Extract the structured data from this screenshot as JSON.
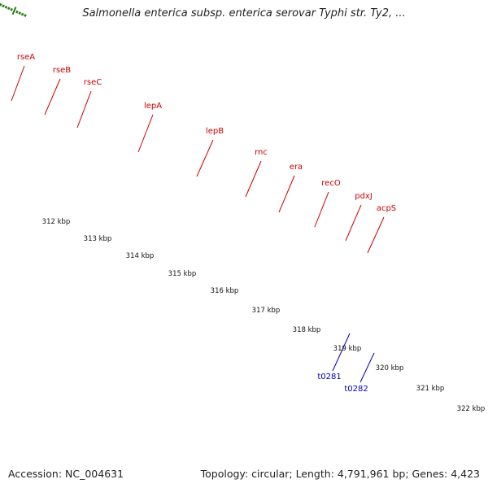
{
  "header": {
    "title": "Salmonella enterica subsp. enterica serovar Typhi str. Ty2, ..."
  },
  "footer": {
    "accession": "Accession: NC_004631",
    "summary": "Topology: circular; Length: 4,791,961 bp; Genes: 4,423"
  },
  "colors": {
    "label_red": "#cc0000",
    "label_blue": "#0000bb",
    "ticks": "#2e7d1a",
    "backbone": "#8a8a8a",
    "forward_arrow": "#ff0000"
  },
  "gene_labels": [
    {
      "text": "rseA",
      "color": "#cc0000"
    },
    {
      "text": "rseB",
      "color": "#cc0000"
    },
    {
      "text": "rseC",
      "color": "#cc0000"
    },
    {
      "text": "lepA",
      "color": "#cc0000"
    },
    {
      "text": "lepB",
      "color": "#cc0000"
    },
    {
      "text": "rnc",
      "color": "#cc0000"
    },
    {
      "text": "era",
      "color": "#cc0000"
    },
    {
      "text": "recO",
      "color": "#cc0000"
    },
    {
      "text": "pdxJ",
      "color": "#cc0000"
    },
    {
      "text": "acpS",
      "color": "#cc0000"
    },
    {
      "text": "t0281",
      "color": "#0000bb"
    },
    {
      "text": "t0282",
      "color": "#0000bb"
    }
  ],
  "scale_labels": [
    "312 kbp",
    "313 kbp",
    "314 kbp",
    "315 kbp",
    "316 kbp",
    "317 kbp",
    "318 kbp",
    "319 kbp",
    "320 kbp",
    "321 kbp",
    "322 kbp"
  ]
}
